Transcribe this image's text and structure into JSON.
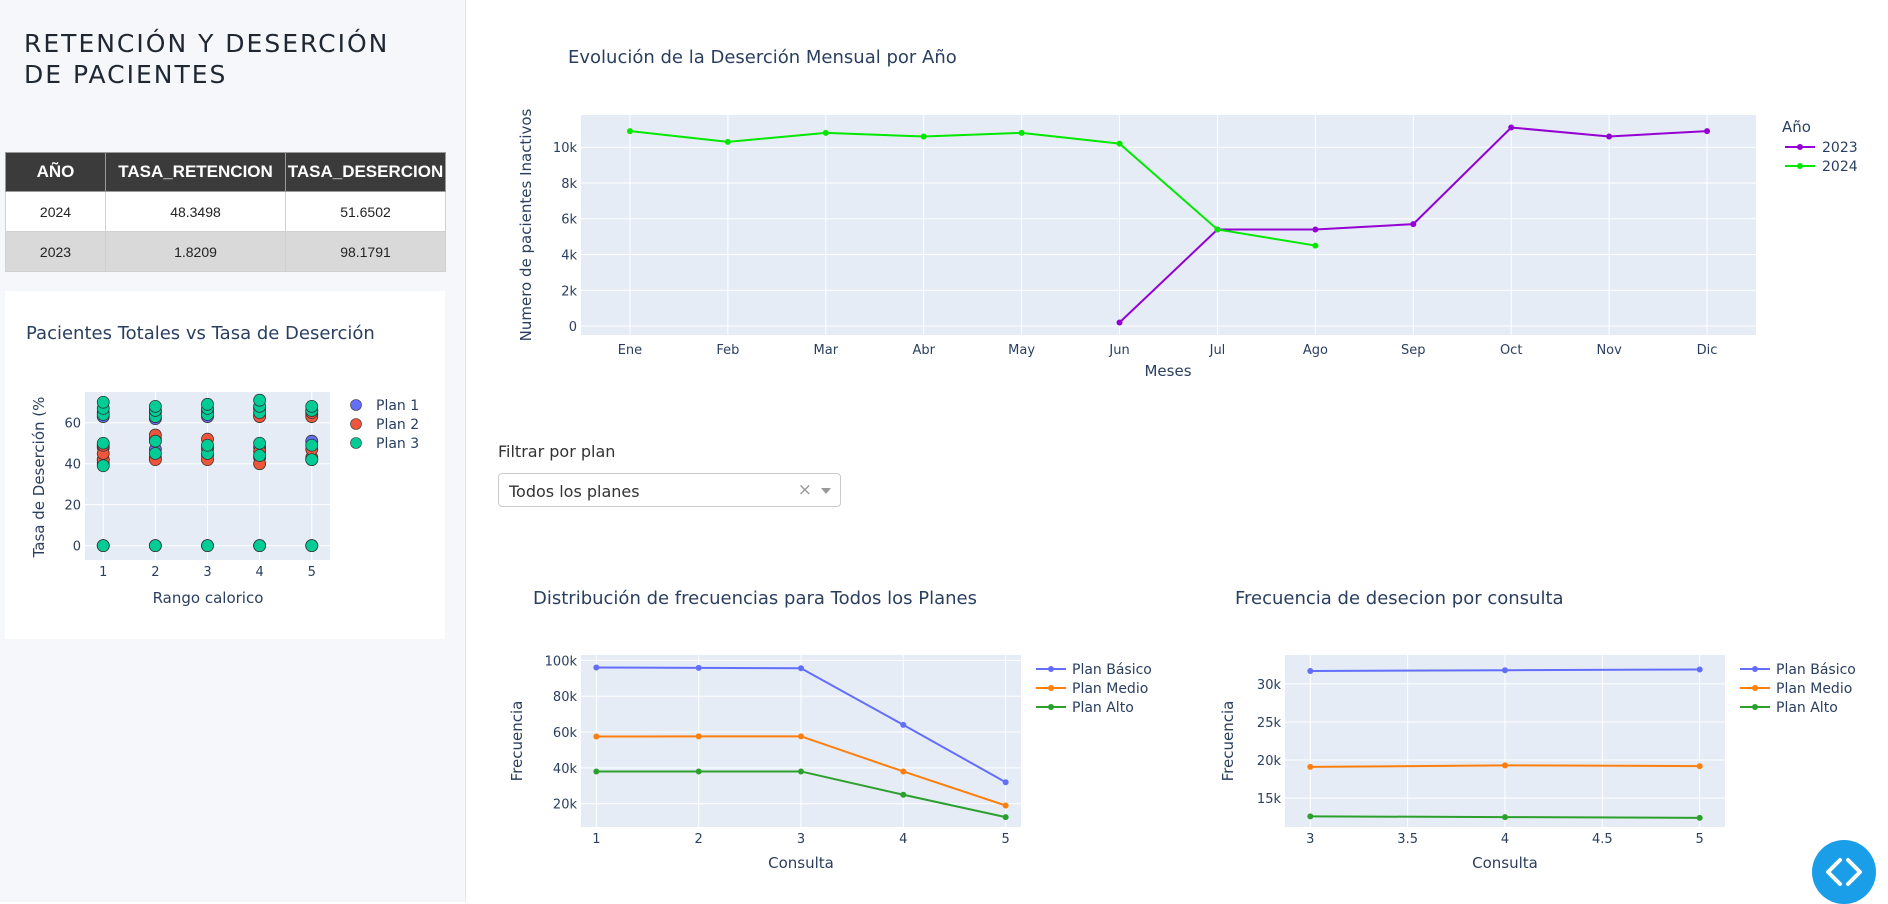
{
  "sidebar": {
    "title_line1": "RETENCIÓN Y DESERCIÓN",
    "title_line2": "DE PACIENTES"
  },
  "table": {
    "headers": [
      "AÑO",
      "TASA_RETENCION",
      "TASA_DESERCION"
    ],
    "rows": [
      [
        "2024",
        "48.3498",
        "51.6502"
      ],
      [
        "2023",
        "1.8209",
        "98.1791"
      ]
    ]
  },
  "scatter_title": "Pacientes Totales vs Tasa de Deserción",
  "line_title": "Evolución de la Deserción Mensual por Año",
  "filter": {
    "label": "Filtrar por plan",
    "selected": "Todos los planes",
    "clear": "×"
  },
  "freq_title": "Distribución de frecuencias para Todos los Planes",
  "consulta_title": "Frecuencia de desecion por consulta",
  "colors": {
    "y2023": "#9400d3",
    "y2024": "#00e800",
    "plan1": "#636efa",
    "plan2": "#ef553b",
    "plan3": "#00cc96",
    "basico": "#636efa",
    "medio": "#ff7f0e",
    "alto": "#2ca02c",
    "fab": "#1a9ee8"
  },
  "icons": {
    "fab": "code-icon",
    "dropdown": "chevron-down-icon"
  },
  "chart_data": [
    {
      "type": "line",
      "title": "Evolución de la Deserción Mensual por Año",
      "xlabel": "Meses",
      "ylabel": "Numero de pacientes Inactivos",
      "categories": [
        "Ene",
        "Feb",
        "Mar",
        "Abr",
        "May",
        "Jun",
        "Jul",
        "Ago",
        "Sep",
        "Oct",
        "Nov",
        "Dic"
      ],
      "ylim": [
        -500,
        11800
      ],
      "yticks": [
        0,
        2000,
        4000,
        6000,
        8000,
        10000
      ],
      "ytick_labels": [
        "0",
        "2k",
        "4k",
        "6k",
        "8k",
        "10k"
      ],
      "legend_title": "Año",
      "series": [
        {
          "name": "2023",
          "values": [
            null,
            null,
            null,
            null,
            null,
            200,
            5400,
            5400,
            5700,
            11100,
            10600,
            10900
          ]
        },
        {
          "name": "2024",
          "values": [
            10900,
            10300,
            10800,
            10600,
            10800,
            10200,
            5400,
            4500,
            null,
            null,
            null,
            null
          ]
        }
      ]
    },
    {
      "type": "scatter",
      "title": "Pacientes Totales vs Tasa de Deserción",
      "xlabel": "Rango calorico",
      "ylabel": "Tasa de Deserción (%",
      "xlim": [
        0.65,
        5.35
      ],
      "ylim": [
        -7,
        75
      ],
      "xticks": [
        1,
        2,
        3,
        4,
        5
      ],
      "yticks": [
        0,
        20,
        40,
        60
      ],
      "series": [
        {
          "name": "Plan 1",
          "points": [
            [
              1,
              0
            ],
            [
              1,
              40
            ],
            [
              1,
              42
            ],
            [
              1,
              48
            ],
            [
              1,
              63
            ],
            [
              2,
              0
            ],
            [
              2,
              43
            ],
            [
              2,
              47
            ],
            [
              2,
              62
            ],
            [
              2,
              66
            ],
            [
              3,
              0
            ],
            [
              3,
              44
            ],
            [
              3,
              48
            ],
            [
              3,
              63
            ],
            [
              3,
              66
            ],
            [
              4,
              0
            ],
            [
              4,
              43
            ],
            [
              4,
              48
            ],
            [
              4,
              64
            ],
            [
              4,
              67
            ],
            [
              5,
              0
            ],
            [
              5,
              42
            ],
            [
              5,
              51
            ],
            [
              5,
              64
            ],
            [
              5,
              66
            ]
          ]
        },
        {
          "name": "Plan 2",
          "points": [
            [
              1,
              0
            ],
            [
              1,
              42
            ],
            [
              1,
              45
            ],
            [
              1,
              49
            ],
            [
              1,
              65
            ],
            [
              2,
              0
            ],
            [
              2,
              42
            ],
            [
              2,
              52
            ],
            [
              2,
              54
            ],
            [
              2,
              65
            ],
            [
              3,
              0
            ],
            [
              3,
              42
            ],
            [
              3,
              47
            ],
            [
              3,
              52
            ],
            [
              3,
              65
            ],
            [
              4,
              0
            ],
            [
              4,
              40
            ],
            [
              4,
              46
            ],
            [
              4,
              63
            ],
            [
              4,
              67
            ],
            [
              5,
              0
            ],
            [
              5,
              43
            ],
            [
              5,
              47
            ],
            [
              5,
              63
            ],
            [
              5,
              65
            ]
          ]
        },
        {
          "name": "Plan 3",
          "points": [
            [
              1,
              0
            ],
            [
              1,
              39
            ],
            [
              1,
              50
            ],
            [
              1,
              64
            ],
            [
              1,
              67
            ],
            [
              1,
              70
            ],
            [
              2,
              0
            ],
            [
              2,
              45
            ],
            [
              2,
              51
            ],
            [
              2,
              63
            ],
            [
              2,
              66
            ],
            [
              2,
              68
            ],
            [
              3,
              0
            ],
            [
              3,
              45
            ],
            [
              3,
              49
            ],
            [
              3,
              64
            ],
            [
              3,
              67
            ],
            [
              3,
              69
            ],
            [
              4,
              0
            ],
            [
              4,
              44
            ],
            [
              4,
              50
            ],
            [
              4,
              65
            ],
            [
              4,
              68
            ],
            [
              4,
              71
            ],
            [
              5,
              0
            ],
            [
              5,
              42
            ],
            [
              5,
              49
            ],
            [
              5,
              66
            ],
            [
              5,
              68
            ]
          ]
        }
      ]
    },
    {
      "type": "line",
      "title": "Distribución de frecuencias para Todos los Planes",
      "xlabel": "Consulta",
      "ylabel": "Frecuencia",
      "x": [
        1,
        2,
        3,
        4,
        5
      ],
      "xlim": [
        0.85,
        5.15
      ],
      "ylim": [
        7000,
        103000
      ],
      "yticks": [
        20000,
        40000,
        60000,
        80000,
        100000
      ],
      "ytick_labels": [
        "20k",
        "40k",
        "60k",
        "80k",
        "100k"
      ],
      "series": [
        {
          "name": "Plan Básico",
          "values": [
            96000,
            95800,
            95600,
            64000,
            32000
          ]
        },
        {
          "name": "Plan Medio",
          "values": [
            57500,
            57600,
            57600,
            38000,
            19000
          ]
        },
        {
          "name": "Plan Alto",
          "values": [
            38000,
            38000,
            38000,
            25000,
            12500
          ]
        }
      ]
    },
    {
      "type": "line",
      "title": "Frecuencia de desecion por consulta",
      "xlabel": "Consulta",
      "ylabel": "Frecuencia",
      "x": [
        3,
        4,
        5
      ],
      "xlim": [
        2.87,
        5.13
      ],
      "ylim": [
        11200,
        33800
      ],
      "xticks": [
        3,
        3.5,
        4,
        4.5,
        5
      ],
      "yticks": [
        15000,
        20000,
        25000,
        30000
      ],
      "ytick_labels": [
        "15k",
        "20k",
        "25k",
        "30k"
      ],
      "series": [
        {
          "name": "Plan Básico",
          "values": [
            31700,
            31800,
            31900
          ]
        },
        {
          "name": "Plan Medio",
          "values": [
            19100,
            19300,
            19200
          ]
        },
        {
          "name": "Plan Alto",
          "values": [
            12600,
            12500,
            12400
          ]
        }
      ]
    }
  ]
}
